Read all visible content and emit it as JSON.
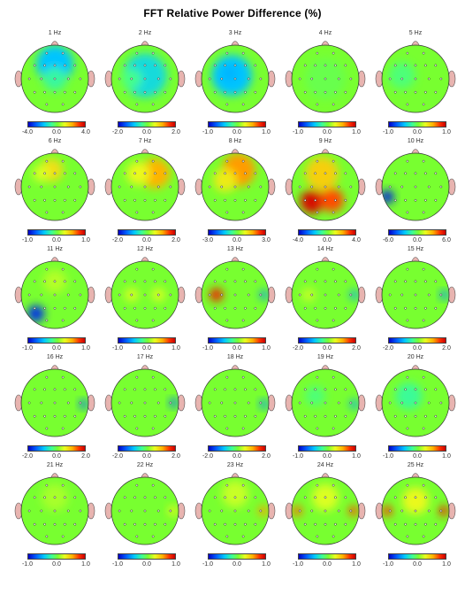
{
  "title": "FFT Relative Power Difference  (%)",
  "chart_data": [
    {
      "type": "heatmap",
      "freq_label": "1 Hz",
      "scale": [
        "-4.0",
        "0.0",
        "4.0"
      ],
      "blobs": [
        {
          "x": 0.5,
          "y": 0.28,
          "r": 0.55,
          "v": -0.45
        },
        {
          "x": 0.5,
          "y": 0.5,
          "r": 0.35,
          "v": -0.2
        }
      ]
    },
    {
      "type": "heatmap",
      "freq_label": "2 Hz",
      "scale": [
        "-2.0",
        "0.0",
        "2.0"
      ],
      "blobs": [
        {
          "x": 0.5,
          "y": 0.45,
          "r": 0.65,
          "v": -0.35
        },
        {
          "x": 0.3,
          "y": 0.5,
          "r": 0.3,
          "v": -0.15
        }
      ]
    },
    {
      "type": "heatmap",
      "freq_label": "3 Hz",
      "scale": [
        "-1.0",
        "0.0",
        "1.0"
      ],
      "blobs": [
        {
          "x": 0.45,
          "y": 0.45,
          "r": 0.6,
          "v": -0.45
        },
        {
          "x": 0.42,
          "y": 0.42,
          "r": 0.22,
          "v": -0.5
        }
      ]
    },
    {
      "type": "heatmap",
      "freq_label": "4 Hz",
      "scale": [
        "-1.0",
        "0.0",
        "1.0"
      ],
      "blobs": [
        {
          "x": 0.5,
          "y": 0.5,
          "r": 0.6,
          "v": -0.05
        }
      ]
    },
    {
      "type": "heatmap",
      "freq_label": "5 Hz",
      "scale": [
        "-1.0",
        "0.0",
        "1.0"
      ],
      "blobs": [
        {
          "x": 0.3,
          "y": 0.45,
          "r": 0.4,
          "v": -0.12
        }
      ]
    },
    {
      "type": "heatmap",
      "freq_label": "6 Hz",
      "scale": [
        "-1.0",
        "0.0",
        "1.0"
      ],
      "blobs": [
        {
          "x": 0.45,
          "y": 0.25,
          "r": 0.35,
          "v": 0.4
        },
        {
          "x": 0.3,
          "y": 0.3,
          "r": 0.25,
          "v": 0.25
        }
      ]
    },
    {
      "type": "heatmap",
      "freq_label": "7 Hz",
      "scale": [
        "-2.0",
        "0.0",
        "2.0"
      ],
      "blobs": [
        {
          "x": 0.65,
          "y": 0.3,
          "r": 0.45,
          "v": 0.55
        },
        {
          "x": 0.4,
          "y": 0.3,
          "r": 0.35,
          "v": 0.3
        }
      ]
    },
    {
      "type": "heatmap",
      "freq_label": "8 Hz",
      "scale": [
        "-3.0",
        "0.0",
        "3.0"
      ],
      "blobs": [
        {
          "x": 0.55,
          "y": 0.25,
          "r": 0.5,
          "v": 0.6
        },
        {
          "x": 0.35,
          "y": 0.4,
          "r": 0.35,
          "v": 0.35
        }
      ]
    },
    {
      "type": "heatmap",
      "freq_label": "9 Hz",
      "scale": [
        "-4.0",
        "0.0",
        "4.0"
      ],
      "blobs": [
        {
          "x": 0.3,
          "y": 0.72,
          "r": 0.35,
          "v": 0.95
        },
        {
          "x": 0.6,
          "y": 0.7,
          "r": 0.35,
          "v": 0.75
        },
        {
          "x": 0.45,
          "y": 0.3,
          "r": 0.5,
          "v": 0.45
        }
      ]
    },
    {
      "type": "heatmap",
      "freq_label": "10 Hz",
      "scale": [
        "-6.0",
        "0.0",
        "6.0"
      ],
      "blobs": [
        {
          "x": 0.08,
          "y": 0.65,
          "r": 0.2,
          "v": -0.9
        }
      ]
    },
    {
      "type": "heatmap",
      "freq_label": "11 Hz",
      "scale": [
        "-1.0",
        "0.0",
        "1.0"
      ],
      "blobs": [
        {
          "x": 0.22,
          "y": 0.78,
          "r": 0.25,
          "v": -0.85
        },
        {
          "x": 0.5,
          "y": 0.3,
          "r": 0.35,
          "v": 0.15
        }
      ]
    },
    {
      "type": "heatmap",
      "freq_label": "12 Hz",
      "scale": [
        "-1.0",
        "0.0",
        "1.0"
      ],
      "blobs": [
        {
          "x": 0.3,
          "y": 0.5,
          "r": 0.2,
          "v": 0.25
        },
        {
          "x": 0.7,
          "y": 0.5,
          "r": 0.2,
          "v": 0.25
        }
      ]
    },
    {
      "type": "heatmap",
      "freq_label": "13 Hz",
      "scale": [
        "-1.0",
        "0.0",
        "1.0"
      ],
      "blobs": [
        {
          "x": 0.22,
          "y": 0.5,
          "r": 0.2,
          "v": 0.85
        },
        {
          "x": 0.93,
          "y": 0.5,
          "r": 0.13,
          "v": -0.6
        }
      ]
    },
    {
      "type": "heatmap",
      "freq_label": "14 Hz",
      "scale": [
        "-2.0",
        "0.0",
        "2.0"
      ],
      "blobs": [
        {
          "x": 0.93,
          "y": 0.5,
          "r": 0.13,
          "v": -0.55
        },
        {
          "x": 0.25,
          "y": 0.5,
          "r": 0.2,
          "v": 0.2
        }
      ]
    },
    {
      "type": "heatmap",
      "freq_label": "15 Hz",
      "scale": [
        "-2.0",
        "0.0",
        "2.0"
      ],
      "blobs": [
        {
          "x": 0.93,
          "y": 0.5,
          "r": 0.13,
          "v": -0.6
        }
      ]
    },
    {
      "type": "heatmap",
      "freq_label": "16 Hz",
      "scale": [
        "-2.0",
        "0.0",
        "2.0"
      ],
      "blobs": [
        {
          "x": 0.93,
          "y": 0.52,
          "r": 0.13,
          "v": -0.7
        }
      ]
    },
    {
      "type": "heatmap",
      "freq_label": "17 Hz",
      "scale": [
        "-2.0",
        "0.0",
        "2.0"
      ],
      "blobs": [
        {
          "x": 0.93,
          "y": 0.5,
          "r": 0.13,
          "v": -0.7
        }
      ]
    },
    {
      "type": "heatmap",
      "freq_label": "18 Hz",
      "scale": [
        "-2.0",
        "0.0",
        "2.0"
      ],
      "blobs": [
        {
          "x": 0.93,
          "y": 0.52,
          "r": 0.13,
          "v": -0.6
        }
      ]
    },
    {
      "type": "heatmap",
      "freq_label": "19 Hz",
      "scale": [
        "-1.0",
        "0.0",
        "1.0"
      ],
      "blobs": [
        {
          "x": 0.93,
          "y": 0.52,
          "r": 0.13,
          "v": -0.55
        },
        {
          "x": 0.35,
          "y": 0.4,
          "r": 0.3,
          "v": -0.12
        }
      ]
    },
    {
      "type": "heatmap",
      "freq_label": "20 Hz",
      "scale": [
        "-1.0",
        "0.0",
        "1.0"
      ],
      "blobs": [
        {
          "x": 0.4,
          "y": 0.4,
          "r": 0.4,
          "v": -0.18
        }
      ]
    },
    {
      "type": "heatmap",
      "freq_label": "21 Hz",
      "scale": [
        "-1.0",
        "0.0",
        "1.0"
      ],
      "blobs": [
        {
          "x": 0.5,
          "y": 0.3,
          "r": 0.4,
          "v": 0.12
        }
      ]
    },
    {
      "type": "heatmap",
      "freq_label": "22 Hz",
      "scale": [
        "-1.0",
        "0.0",
        "1.0"
      ],
      "blobs": [
        {
          "x": 0.92,
          "y": 0.5,
          "r": 0.15,
          "v": 0.3
        }
      ]
    },
    {
      "type": "heatmap",
      "freq_label": "23 Hz",
      "scale": [
        "-1.0",
        "0.0",
        "1.0"
      ],
      "blobs": [
        {
          "x": 0.92,
          "y": 0.5,
          "r": 0.15,
          "v": 0.6
        },
        {
          "x": 0.5,
          "y": 0.25,
          "r": 0.4,
          "v": 0.2
        }
      ]
    },
    {
      "type": "heatmap",
      "freq_label": "24 Hz",
      "scale": [
        "-1.0",
        "0.0",
        "1.0"
      ],
      "blobs": [
        {
          "x": 0.08,
          "y": 0.5,
          "r": 0.15,
          "v": 0.7
        },
        {
          "x": 0.92,
          "y": 0.5,
          "r": 0.15,
          "v": 0.75
        },
        {
          "x": 0.5,
          "y": 0.3,
          "r": 0.4,
          "v": 0.25
        }
      ]
    },
    {
      "type": "heatmap",
      "freq_label": "25 Hz",
      "scale": [
        "-1.0",
        "0.0",
        "1.0"
      ],
      "blobs": [
        {
          "x": 0.08,
          "y": 0.5,
          "r": 0.15,
          "v": 0.8
        },
        {
          "x": 0.92,
          "y": 0.5,
          "r": 0.15,
          "v": 0.85
        },
        {
          "x": 0.5,
          "y": 0.35,
          "r": 0.4,
          "v": 0.3
        }
      ]
    }
  ]
}
